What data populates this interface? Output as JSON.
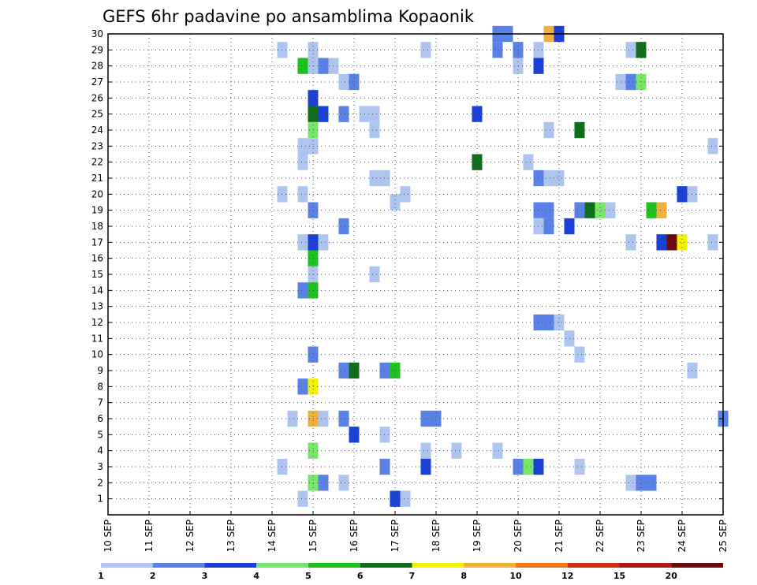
{
  "chart_data": {
    "type": "heatmap",
    "title": "GEFS 6hr padavine po ansamblima Kopaonik",
    "x_tick_labels": [
      "10 SEP",
      "11 SEP",
      "12 SEP",
      "13 SEP",
      "14 SEP",
      "15 SEP",
      "16 SEP",
      "17 SEP",
      "18 SEP",
      "19 SEP",
      "20 SEP",
      "21 SEP",
      "22 SEP",
      "23 SEP",
      "24 SEP",
      "25 SEP"
    ],
    "x_range_days": [
      0,
      15
    ],
    "y_tick_labels": [
      "1",
      "2",
      "3",
      "4",
      "5",
      "6",
      "7",
      "8",
      "9",
      "10",
      "11",
      "12",
      "13",
      "14",
      "15",
      "16",
      "17",
      "18",
      "19",
      "20",
      "21",
      "22",
      "23",
      "24",
      "25",
      "26",
      "27",
      "28",
      "29",
      "30"
    ],
    "y_range": [
      0,
      30
    ],
    "grid": "dotted",
    "colorbar": {
      "position": "bottom",
      "colors": [
        "#b0c4f0",
        "#5a82e6",
        "#1a40d8",
        "#78e66a",
        "#1ec21e",
        "#0e6e1a",
        "#f2f200",
        "#f0b040",
        "#f07818",
        "#d03010",
        "#b01818",
        "#6e0a0a"
      ],
      "labels": [
        "1",
        "2",
        "3",
        "4",
        "5",
        "6",
        "7",
        "8",
        "10",
        "12",
        "15",
        "20"
      ]
    },
    "cells": [
      {
        "x": 4.25,
        "y": 29,
        "c": 0
      },
      {
        "x": 5.0,
        "y": 29,
        "c": 0
      },
      {
        "x": 7.75,
        "y": 29,
        "c": 0
      },
      {
        "x": 9.5,
        "y": 29,
        "c": 1
      },
      {
        "x": 10.0,
        "y": 29,
        "c": 1
      },
      {
        "x": 10.5,
        "y": 29,
        "c": 0
      },
      {
        "x": 12.75,
        "y": 29,
        "c": 0
      },
      {
        "x": 13.0,
        "y": 29,
        "c": 5
      },
      {
        "x": 9.5,
        "y": 30,
        "c": 1
      },
      {
        "x": 9.75,
        "y": 30,
        "c": 1
      },
      {
        "x": 10.75,
        "y": 30,
        "c": 7
      },
      {
        "x": 11.0,
        "y": 30,
        "c": 2
      },
      {
        "x": 4.75,
        "y": 28,
        "c": 4
      },
      {
        "x": 5.0,
        "y": 28,
        "c": 0
      },
      {
        "x": 5.25,
        "y": 28,
        "c": 1
      },
      {
        "x": 5.5,
        "y": 28,
        "c": 0
      },
      {
        "x": 10.0,
        "y": 28,
        "c": 0
      },
      {
        "x": 10.5,
        "y": 28,
        "c": 2
      },
      {
        "x": 5.75,
        "y": 27,
        "c": 0
      },
      {
        "x": 6.0,
        "y": 27,
        "c": 1
      },
      {
        "x": 12.5,
        "y": 27,
        "c": 0
      },
      {
        "x": 12.75,
        "y": 27,
        "c": 1
      },
      {
        "x": 13.0,
        "y": 27,
        "c": 3
      },
      {
        "x": 5.0,
        "y": 26,
        "c": 2
      },
      {
        "x": 5.0,
        "y": 25,
        "c": 5
      },
      {
        "x": 5.25,
        "y": 25,
        "c": 2
      },
      {
        "x": 5.75,
        "y": 25,
        "c": 1
      },
      {
        "x": 6.25,
        "y": 25,
        "c": 0
      },
      {
        "x": 6.5,
        "y": 25,
        "c": 0
      },
      {
        "x": 9.0,
        "y": 25,
        "c": 2
      },
      {
        "x": 5.0,
        "y": 24,
        "c": 3
      },
      {
        "x": 6.5,
        "y": 24,
        "c": 0
      },
      {
        "x": 10.75,
        "y": 24,
        "c": 0
      },
      {
        "x": 11.5,
        "y": 24,
        "c": 5
      },
      {
        "x": 4.75,
        "y": 23,
        "c": 0
      },
      {
        "x": 5.0,
        "y": 23,
        "c": 0
      },
      {
        "x": 14.75,
        "y": 23,
        "c": 0
      },
      {
        "x": 4.75,
        "y": 22,
        "c": 0
      },
      {
        "x": 9.0,
        "y": 22,
        "c": 5
      },
      {
        "x": 10.25,
        "y": 22,
        "c": 0
      },
      {
        "x": 6.5,
        "y": 21,
        "c": 0
      },
      {
        "x": 6.75,
        "y": 21,
        "c": 0
      },
      {
        "x": 10.5,
        "y": 21,
        "c": 1
      },
      {
        "x": 10.75,
        "y": 21,
        "c": 0
      },
      {
        "x": 11.0,
        "y": 21,
        "c": 0
      },
      {
        "x": 4.25,
        "y": 20,
        "c": 0
      },
      {
        "x": 4.75,
        "y": 20,
        "c": 0
      },
      {
        "x": 7.25,
        "y": 20,
        "c": 0
      },
      {
        "x": 7.0,
        "y": 19.5,
        "c": 0
      },
      {
        "x": 14.0,
        "y": 20,
        "c": 2
      },
      {
        "x": 14.25,
        "y": 20,
        "c": 0
      },
      {
        "x": 5.0,
        "y": 19,
        "c": 1
      },
      {
        "x": 10.5,
        "y": 19,
        "c": 1
      },
      {
        "x": 10.75,
        "y": 19,
        "c": 1
      },
      {
        "x": 11.5,
        "y": 19,
        "c": 1
      },
      {
        "x": 11.75,
        "y": 19,
        "c": 5
      },
      {
        "x": 12.0,
        "y": 19,
        "c": 3
      },
      {
        "x": 12.25,
        "y": 19,
        "c": 0
      },
      {
        "x": 13.25,
        "y": 19,
        "c": 4
      },
      {
        "x": 13.5,
        "y": 19,
        "c": 7
      },
      {
        "x": 5.75,
        "y": 18,
        "c": 1
      },
      {
        "x": 10.5,
        "y": 18,
        "c": 0
      },
      {
        "x": 10.75,
        "y": 18,
        "c": 1
      },
      {
        "x": 11.25,
        "y": 18,
        "c": 2
      },
      {
        "x": 4.75,
        "y": 17,
        "c": 0
      },
      {
        "x": 5.0,
        "y": 17,
        "c": 2
      },
      {
        "x": 5.25,
        "y": 17,
        "c": 0
      },
      {
        "x": 12.75,
        "y": 17,
        "c": 0
      },
      {
        "x": 13.5,
        "y": 17,
        "c": 2
      },
      {
        "x": 13.75,
        "y": 17,
        "c": 11
      },
      {
        "x": 14.0,
        "y": 17,
        "c": 6
      },
      {
        "x": 14.75,
        "y": 17,
        "c": 0
      },
      {
        "x": 5.0,
        "y": 16,
        "c": 4
      },
      {
        "x": 5.0,
        "y": 15,
        "c": 0
      },
      {
        "x": 6.5,
        "y": 15,
        "c": 0
      },
      {
        "x": 4.75,
        "y": 14,
        "c": 1
      },
      {
        "x": 5.0,
        "y": 14,
        "c": 4
      },
      {
        "x": 10.5,
        "y": 12,
        "c": 1
      },
      {
        "x": 10.75,
        "y": 12,
        "c": 1
      },
      {
        "x": 11.0,
        "y": 12,
        "c": 0
      },
      {
        "x": 11.25,
        "y": 11,
        "c": 0
      },
      {
        "x": 5.0,
        "y": 10,
        "c": 1
      },
      {
        "x": 11.5,
        "y": 10,
        "c": 0
      },
      {
        "x": 5.75,
        "y": 9,
        "c": 1
      },
      {
        "x": 6.0,
        "y": 9,
        "c": 5
      },
      {
        "x": 6.75,
        "y": 9,
        "c": 1
      },
      {
        "x": 7.0,
        "y": 9,
        "c": 4
      },
      {
        "x": 14.25,
        "y": 9,
        "c": 0
      },
      {
        "x": 4.75,
        "y": 8,
        "c": 1
      },
      {
        "x": 5.0,
        "y": 8,
        "c": 6
      },
      {
        "x": 4.5,
        "y": 6,
        "c": 0
      },
      {
        "x": 5.0,
        "y": 6,
        "c": 7
      },
      {
        "x": 5.25,
        "y": 6,
        "c": 0
      },
      {
        "x": 5.75,
        "y": 6,
        "c": 1
      },
      {
        "x": 7.75,
        "y": 6,
        "c": 1
      },
      {
        "x": 8.0,
        "y": 6,
        "c": 1
      },
      {
        "x": 15.0,
        "y": 6,
        "c": 1
      },
      {
        "x": 6.0,
        "y": 5,
        "c": 2
      },
      {
        "x": 6.75,
        "y": 5,
        "c": 0
      },
      {
        "x": 5.0,
        "y": 4,
        "c": 3
      },
      {
        "x": 7.75,
        "y": 4,
        "c": 0
      },
      {
        "x": 8.5,
        "y": 4,
        "c": 0
      },
      {
        "x": 9.5,
        "y": 4,
        "c": 0
      },
      {
        "x": 4.25,
        "y": 3,
        "c": 0
      },
      {
        "x": 6.75,
        "y": 3,
        "c": 1
      },
      {
        "x": 7.75,
        "y": 3,
        "c": 2
      },
      {
        "x": 10.0,
        "y": 3,
        "c": 1
      },
      {
        "x": 10.25,
        "y": 3,
        "c": 3
      },
      {
        "x": 10.5,
        "y": 3,
        "c": 2
      },
      {
        "x": 11.5,
        "y": 3,
        "c": 0
      },
      {
        "x": 5.0,
        "y": 2,
        "c": 3
      },
      {
        "x": 5.25,
        "y": 2,
        "c": 1
      },
      {
        "x": 5.75,
        "y": 2,
        "c": 0
      },
      {
        "x": 12.75,
        "y": 2,
        "c": 0
      },
      {
        "x": 13.0,
        "y": 2,
        "c": 1
      },
      {
        "x": 13.25,
        "y": 2,
        "c": 1
      },
      {
        "x": 4.75,
        "y": 1,
        "c": 0
      },
      {
        "x": 7.0,
        "y": 1,
        "c": 2
      },
      {
        "x": 7.25,
        "y": 1,
        "c": 0
      }
    ]
  }
}
